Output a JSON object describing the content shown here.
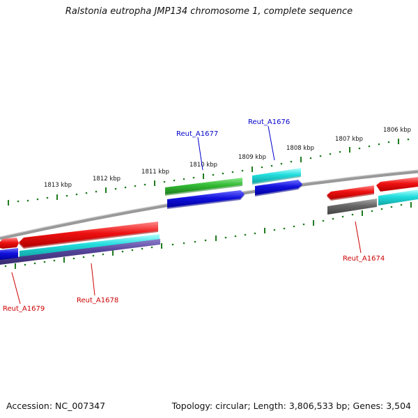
{
  "title": "Ralstonia eutropha JMP134 chromosome 1, complete sequence",
  "footer": {
    "accession": "Accession: NC_007347",
    "summary": "Topology: circular; Length: 3,806,533 bp; Genes: 3,504"
  },
  "ticks": [
    "1813 kbp",
    "1812 kbp",
    "1811 kbp",
    "1810 kbp",
    "1809 kbp",
    "1808 kbp",
    "1807 kbp",
    "1806 kbp"
  ],
  "genes": {
    "a1677": "Reut_A1677",
    "a1676": "Reut_A1676",
    "a1679": "Reut_A1679",
    "a1678": "Reut_A1678",
    "a1674": "Reut_A1674"
  },
  "colors": {
    "backbone": "#8a8a8a",
    "tick": "#1e7a1e",
    "forward_label": "#0000cc",
    "reverse_label": "#cc0000",
    "red": "#ee1111",
    "green": "#33bb33",
    "blue": "#1111dd",
    "cyan": "#22dddd",
    "purple": "#554499",
    "gray": "#666666"
  }
}
